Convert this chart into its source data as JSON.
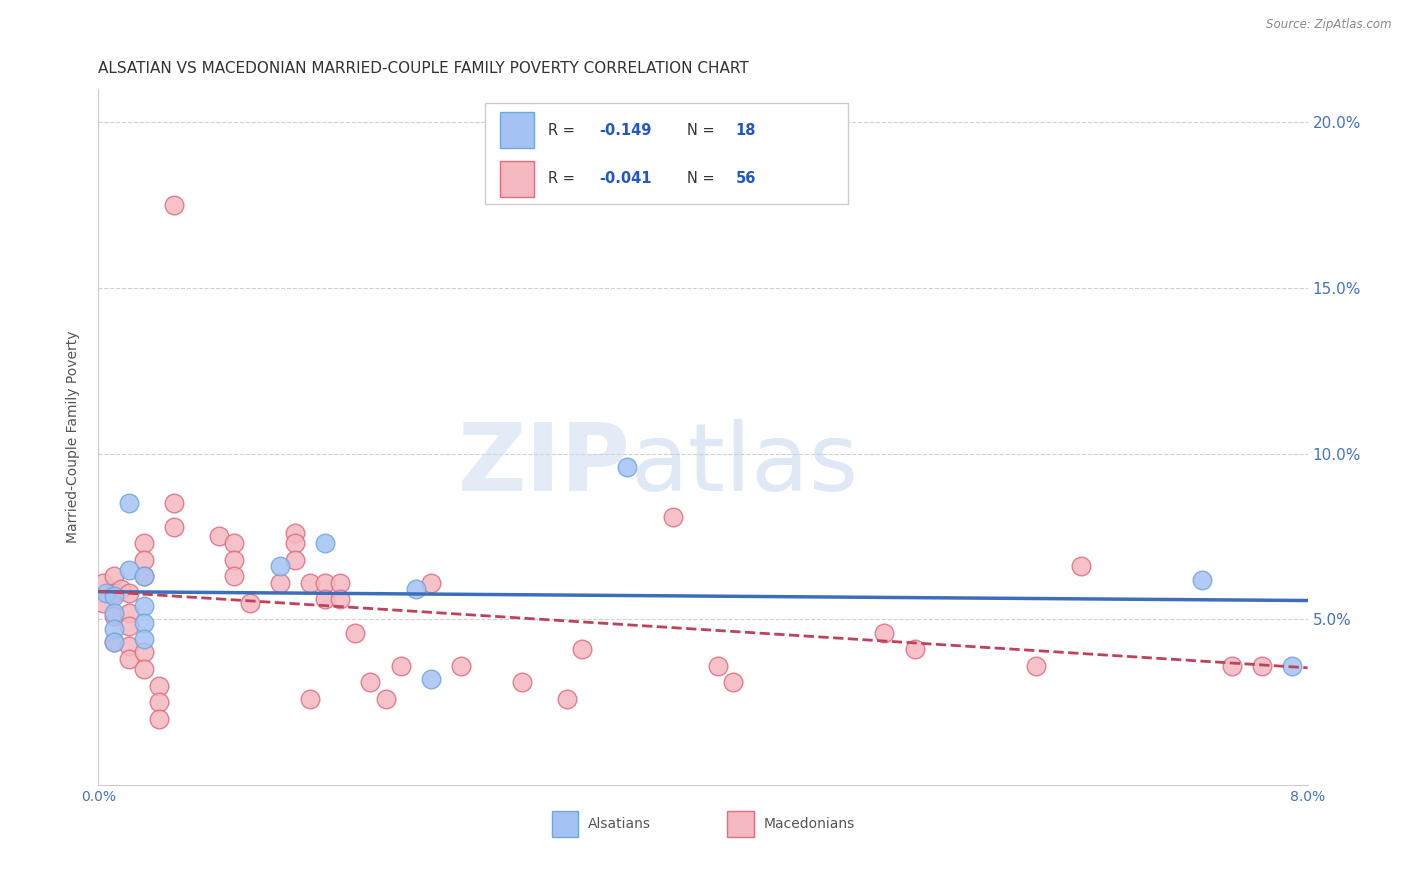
{
  "title": "ALSATIAN VS MACEDONIAN MARRIED-COUPLE FAMILY POVERTY CORRELATION CHART",
  "source": "Source: ZipAtlas.com",
  "ylabel_label": "Married-Couple Family Poverty",
  "x_min": 0.0,
  "x_max": 0.08,
  "y_min": 0.0,
  "y_max": 0.21,
  "y_ticks": [
    0.05,
    0.1,
    0.15,
    0.2
  ],
  "y_tick_labels": [
    "5.0%",
    "10.0%",
    "15.0%",
    "20.0%"
  ],
  "x_ticks": [
    0.0,
    0.01,
    0.02,
    0.03,
    0.04,
    0.05,
    0.06,
    0.07,
    0.08
  ],
  "x_tick_labels": [
    "0.0%",
    "",
    "",
    "",
    "",
    "",
    "",
    "",
    "8.0%"
  ],
  "alsatian_color": "#a4c2f4",
  "alsatian_edge_color": "#6fa8dc",
  "macedonian_color": "#f4b8c1",
  "macedonian_edge_color": "#e06c7e",
  "trend_als_color": "#3d6eba",
  "trend_mac_color": "#c0415a",
  "alsatian_x": [
    0.0005,
    0.001,
    0.001,
    0.001,
    0.001,
    0.002,
    0.002,
    0.003,
    0.003,
    0.003,
    0.003,
    0.012,
    0.015,
    0.021,
    0.022,
    0.035,
    0.073,
    0.079
  ],
  "alsatian_y": [
    0.058,
    0.057,
    0.052,
    0.047,
    0.043,
    0.085,
    0.065,
    0.063,
    0.054,
    0.049,
    0.044,
    0.066,
    0.073,
    0.059,
    0.032,
    0.096,
    0.062,
    0.036
  ],
  "macedonian_x": [
    0.0003,
    0.0003,
    0.001,
    0.001,
    0.001,
    0.001,
    0.0015,
    0.002,
    0.002,
    0.002,
    0.002,
    0.002,
    0.003,
    0.003,
    0.003,
    0.003,
    0.003,
    0.004,
    0.004,
    0.004,
    0.005,
    0.005,
    0.005,
    0.008,
    0.009,
    0.009,
    0.009,
    0.01,
    0.012,
    0.013,
    0.013,
    0.013,
    0.014,
    0.014,
    0.015,
    0.015,
    0.016,
    0.016,
    0.017,
    0.018,
    0.019,
    0.02,
    0.022,
    0.024,
    0.028,
    0.031,
    0.032,
    0.038,
    0.041,
    0.042,
    0.052,
    0.054,
    0.062,
    0.065,
    0.075,
    0.077
  ],
  "macedonian_y": [
    0.061,
    0.055,
    0.063,
    0.058,
    0.051,
    0.043,
    0.059,
    0.058,
    0.052,
    0.048,
    0.042,
    0.038,
    0.073,
    0.068,
    0.063,
    0.04,
    0.035,
    0.03,
    0.025,
    0.02,
    0.175,
    0.085,
    0.078,
    0.075,
    0.073,
    0.068,
    0.063,
    0.055,
    0.061,
    0.076,
    0.073,
    0.068,
    0.061,
    0.026,
    0.061,
    0.056,
    0.061,
    0.056,
    0.046,
    0.031,
    0.026,
    0.036,
    0.061,
    0.036,
    0.031,
    0.026,
    0.041,
    0.081,
    0.036,
    0.031,
    0.046,
    0.041,
    0.036,
    0.066,
    0.036,
    0.036
  ],
  "watermark_zip": "ZIP",
  "watermark_atlas": "atlas",
  "background_color": "#ffffff",
  "grid_color": "#d0d0d0",
  "title_fontsize": 11,
  "axis_label_fontsize": 10,
  "tick_fontsize": 10,
  "marker_size": 180
}
